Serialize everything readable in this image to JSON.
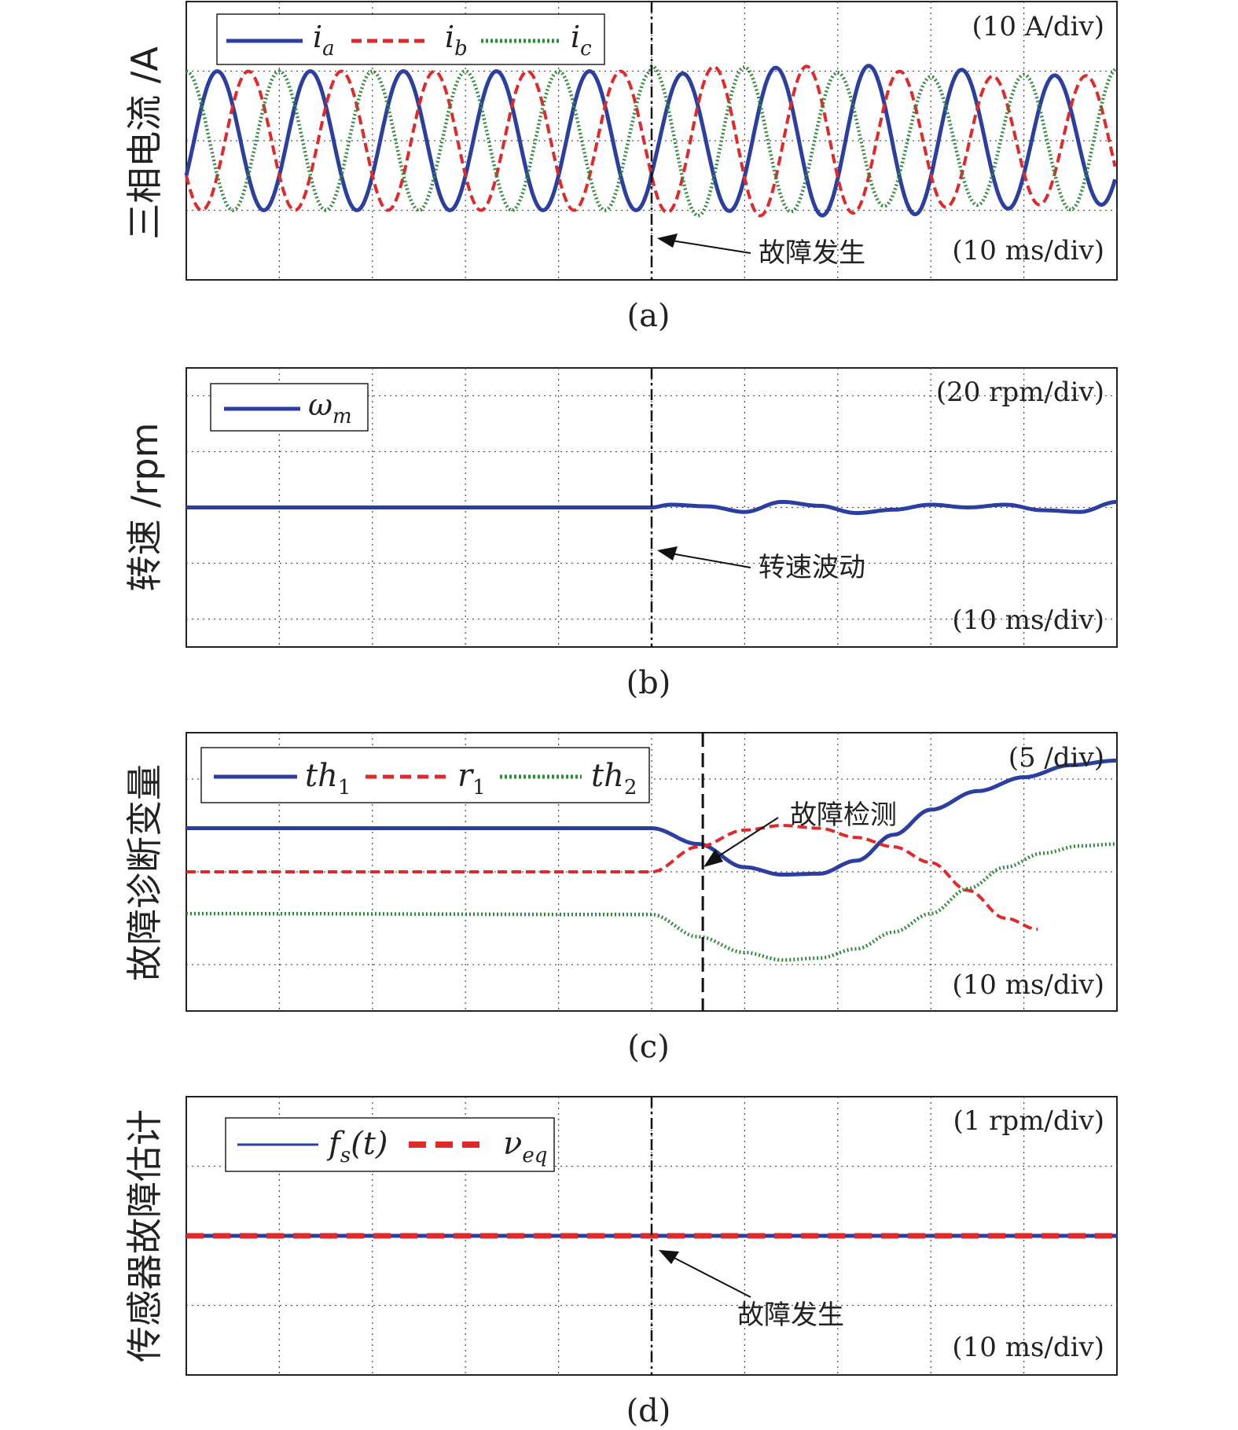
{
  "colors": {
    "ia": "#2b3fa0",
    "ib": "#e02a2a",
    "ic": "#2e8b3a",
    "frame": "#222222",
    "grid": "#555555"
  },
  "chart_data": [
    {
      "type": "line",
      "panel_label": "(a)",
      "ylabel": "三相电流 /A",
      "y_scale_text": "(10 A/div)",
      "x_scale_text": "(10 ms/div)",
      "annotation": "故障发生",
      "fault_time_ms": 50,
      "x_range_ms": [
        0,
        100
      ],
      "y_range_div": [
        -2,
        2
      ],
      "series": [
        {
          "name_base": "i",
          "name_sub": "a",
          "color": "#2b3fa0",
          "dash": "solid",
          "amplitude_div": 1.0,
          "phase_deg": -30
        },
        {
          "name_base": "i",
          "name_sub": "b",
          "color": "#e02a2a",
          "dash": "dashed",
          "amplitude_div": 1.0,
          "phase_deg": -150
        },
        {
          "name_base": "i",
          "name_sub": "c",
          "color": "#2e8b3a",
          "dash": "dotted",
          "amplitude_div": 1.0,
          "phase_deg": 90
        }
      ],
      "period_ms": 10
    },
    {
      "type": "line",
      "panel_label": "(b)",
      "ylabel": "转速 /rpm",
      "y_scale_text": "(20 rpm/div)",
      "x_scale_text": "(10 ms/div)",
      "annotation": "转速波动",
      "fault_time_ms": 50,
      "x_range_ms": [
        0,
        100
      ],
      "y_range_div": [
        -2.5,
        2.5
      ],
      "series": [
        {
          "name_base": "ω",
          "name_sub": "m",
          "color": "#2b3fa0",
          "dash": "solid",
          "x": [
            0,
            50,
            52,
            56,
            60,
            64,
            68,
            72,
            76,
            80,
            84,
            88,
            92,
            96,
            100
          ],
          "y": [
            0,
            0,
            0.05,
            0.02,
            -0.08,
            0.1,
            0.03,
            -0.1,
            -0.04,
            0.05,
            0.0,
            0.05,
            -0.05,
            -0.08,
            0.1
          ]
        }
      ]
    },
    {
      "type": "line",
      "panel_label": "(c)",
      "ylabel": "故障诊断变量",
      "y_scale_text": "(5 /div)",
      "x_scale_text": "(10 ms/div)",
      "annotation": "故障检测",
      "fault_time_ms": 50,
      "detect_time_ms": 55.5,
      "x_range_ms": [
        0,
        100
      ],
      "y_range_div": [
        -1.5,
        1.5
      ],
      "series": [
        {
          "name_base": "th",
          "name_sub": "1",
          "color": "#2b3fa0",
          "dash": "solid",
          "x": [
            0,
            50,
            55,
            60,
            64,
            68,
            72,
            76,
            80,
            85,
            90,
            95,
            100
          ],
          "y": [
            0.47,
            0.47,
            0.3,
            0.05,
            -0.03,
            -0.02,
            0.12,
            0.4,
            0.67,
            0.87,
            1.02,
            1.15,
            1.2
          ]
        },
        {
          "name_base": "r",
          "name_sub": "1",
          "color": "#e02a2a",
          "dash": "dashed",
          "x": [
            0,
            50,
            55,
            60,
            64,
            68,
            72,
            76,
            80,
            84,
            88,
            91.5
          ],
          "y": [
            0,
            0,
            0.27,
            0.45,
            0.5,
            0.47,
            0.37,
            0.27,
            0.1,
            -0.2,
            -0.5,
            -0.62
          ]
        },
        {
          "name_base": "th",
          "name_sub": "2",
          "color": "#2e8b3a",
          "dash": "dotted",
          "x": [
            0,
            50,
            55,
            60,
            64,
            68,
            72,
            76,
            80,
            84,
            88,
            92,
            96,
            100
          ],
          "y": [
            -0.45,
            -0.46,
            -0.7,
            -0.87,
            -0.95,
            -0.93,
            -0.83,
            -0.65,
            -0.45,
            -0.18,
            0.05,
            0.2,
            0.28,
            0.3
          ]
        }
      ]
    },
    {
      "type": "line",
      "panel_label": "(d)",
      "ylabel": "传感器故障估计",
      "y_scale_text": "(1 rpm/div)",
      "x_scale_text": "(10 ms/div)",
      "annotation": "故障发生",
      "fault_time_ms": 50,
      "x_range_ms": [
        0,
        100
      ],
      "y_range_div": [
        -2,
        2
      ],
      "series": [
        {
          "name_base": "f",
          "name_sub": "s",
          "name_tail": "(t)",
          "color": "#2b3fa0",
          "dash": "solid",
          "x": [
            0,
            100
          ],
          "y": [
            0,
            0
          ]
        },
        {
          "name_base": "ν",
          "name_sub": "eq",
          "color": "#e02a2a",
          "dash": "bigdash",
          "x": [
            0,
            100
          ],
          "y": [
            0,
            0
          ]
        }
      ]
    }
  ]
}
